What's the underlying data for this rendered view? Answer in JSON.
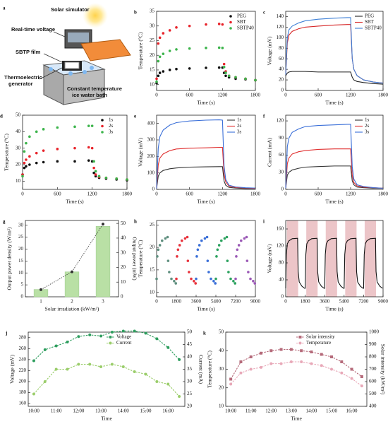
{
  "schematic": {
    "label": "a",
    "texts": [
      "Solar simulator",
      "Real-time voltage",
      "SBTP film",
      "Thermoelectric",
      "generator",
      "Constant temperature",
      "ice water bath"
    ]
  },
  "chart_data": [
    {
      "label": "b",
      "type": "scatter",
      "xlabel": "Time (s)",
      "ylabel": "Temperature (°C)",
      "legend": "upper right",
      "x": [
        0,
        30,
        60,
        120,
        240,
        360,
        600,
        900,
        1140,
        1200,
        1230,
        1260,
        1320,
        1440,
        1620,
        1800
      ],
      "xlim": [
        0,
        1800
      ],
      "xticks": [
        0,
        600,
        1200,
        1800
      ],
      "ylim": [
        8,
        35
      ],
      "yticks": [
        10,
        15,
        20,
        25,
        30,
        35
      ],
      "series": [
        {
          "name": "PEG",
          "color": "#111111",
          "values": [
            10.5,
            13,
            14,
            14.5,
            15,
            15.3,
            15.5,
            15.7,
            15.8,
            15.8,
            14,
            13,
            12.5,
            12,
            11.8,
            11.5
          ]
        },
        {
          "name": "SBT",
          "color": "#e8232a",
          "values": [
            12,
            24,
            26,
            27.5,
            28.5,
            29.5,
            30,
            30.5,
            30.7,
            30.5,
            17,
            14.5,
            13,
            12.5,
            12,
            11.5
          ]
        },
        {
          "name": "SBTP40",
          "color": "#3cb44b",
          "values": [
            11,
            18,
            19.5,
            20.5,
            21.5,
            22,
            22.3,
            22.5,
            22.6,
            22.5,
            16,
            14,
            13,
            12.5,
            12,
            11.5
          ]
        }
      ]
    },
    {
      "label": "c",
      "type": "line",
      "xlabel": "Time (s)",
      "ylabel": "Voltage (mV)",
      "legend": "upper right",
      "x": [
        0,
        30,
        60,
        120,
        240,
        360,
        600,
        900,
        1140,
        1200,
        1230,
        1260,
        1320,
        1440,
        1620,
        1800
      ],
      "xlim": [
        0,
        1800
      ],
      "xticks": [
        0,
        600,
        1200,
        1800
      ],
      "ylim": [
        0,
        150
      ],
      "yticks": [
        0,
        20,
        40,
        60,
        80,
        100,
        120,
        140
      ],
      "series": [
        {
          "name": "PEG",
          "color": "#222222",
          "values": [
            28,
            33,
            35,
            36,
            36,
            36,
            35,
            35,
            35,
            35,
            25,
            20,
            17,
            15,
            13,
            12
          ]
        },
        {
          "name": "SBT",
          "color": "#d62728",
          "values": [
            30,
            90,
            105,
            112,
            117,
            120,
            122,
            124,
            125,
            125,
            60,
            40,
            28,
            20,
            16,
            14
          ]
        },
        {
          "name": "SBTP40",
          "color": "#3d7fd6",
          "values": [
            30,
            100,
            115,
            122,
            128,
            132,
            135,
            137,
            138,
            138,
            60,
            40,
            28,
            20,
            16,
            14
          ]
        }
      ]
    },
    {
      "label": "d",
      "type": "scatter",
      "xlabel": "Time (s)",
      "ylabel": "Temperature (°C)",
      "legend": "upper right",
      "x": [
        0,
        30,
        60,
        120,
        240,
        360,
        600,
        900,
        1140,
        1200,
        1230,
        1260,
        1320,
        1440,
        1620,
        1800
      ],
      "xlim": [
        0,
        1800
      ],
      "xticks": [
        0,
        600,
        1200,
        1800
      ],
      "ylim": [
        5,
        50
      ],
      "yticks": [
        10,
        20,
        30,
        40,
        50
      ],
      "series": [
        {
          "name": "1s",
          "color": "#111111",
          "values": [
            14,
            18,
            19,
            20,
            21,
            21.5,
            22,
            22,
            22.5,
            22,
            15,
            13,
            12,
            11.5,
            11,
            10.5
          ]
        },
        {
          "name": "2s",
          "color": "#e8232a",
          "values": [
            14,
            21,
            23,
            25,
            27,
            28.5,
            29.5,
            30,
            30.5,
            30,
            18,
            14,
            12.5,
            12,
            11.5,
            11
          ]
        },
        {
          "name": "3s",
          "color": "#3cb44b",
          "values": [
            13,
            28,
            33,
            37,
            40,
            41.5,
            42.5,
            43,
            43.5,
            43.5,
            22,
            16,
            13,
            12,
            11.5,
            11
          ]
        }
      ]
    },
    {
      "label": "e",
      "type": "line",
      "xlabel": "Time (s)",
      "ylabel": "Voltage (mV)",
      "legend": "upper right",
      "x": [
        0,
        30,
        60,
        120,
        240,
        360,
        600,
        900,
        1140,
        1200,
        1230,
        1260,
        1320,
        1440,
        1620,
        1800
      ],
      "xlim": [
        0,
        1800
      ],
      "xticks": [
        0,
        600,
        1200,
        1800
      ],
      "ylim": [
        0,
        450
      ],
      "yticks": [
        0,
        100,
        200,
        300,
        400
      ],
      "series": [
        {
          "name": "1s",
          "color": "#333333",
          "values": [
            5,
            80,
            100,
            115,
            125,
            130,
            135,
            137,
            138,
            138,
            50,
            25,
            12,
            8,
            5,
            5
          ]
        },
        {
          "name": "2s",
          "color": "#e03030",
          "values": [
            5,
            150,
            190,
            215,
            235,
            245,
            250,
            252,
            255,
            255,
            90,
            45,
            20,
            12,
            8,
            6
          ]
        },
        {
          "name": "3s",
          "color": "#3a6fd8",
          "values": [
            5,
            250,
            320,
            360,
            390,
            405,
            415,
            420,
            422,
            420,
            140,
            60,
            25,
            15,
            10,
            8
          ]
        }
      ]
    },
    {
      "label": "f",
      "type": "line",
      "xlabel": "Time (s)",
      "ylabel": "Current (mA)",
      "legend": "upper right",
      "x": [
        0,
        30,
        60,
        120,
        240,
        360,
        600,
        900,
        1140,
        1200,
        1230,
        1260,
        1320,
        1440,
        1620,
        1800
      ],
      "xlim": [
        0,
        1800
      ],
      "xticks": [
        0,
        600,
        1200,
        1800
      ],
      "ylim": [
        0,
        130
      ],
      "yticks": [
        0,
        30,
        60,
        90,
        120
      ],
      "series": [
        {
          "name": "1s",
          "color": "#333333",
          "values": [
            2,
            25,
            30,
            34,
            37,
            39,
            40,
            41,
            41,
            41,
            15,
            8,
            4,
            3,
            2,
            2
          ]
        },
        {
          "name": "2s",
          "color": "#e03030",
          "values": [
            2,
            45,
            55,
            62,
            66,
            68,
            70,
            71,
            71,
            71,
            25,
            12,
            6,
            4,
            3,
            2
          ]
        },
        {
          "name": "3s",
          "color": "#3a6fd8",
          "values": [
            2,
            75,
            90,
            100,
            106,
            110,
            112,
            113,
            114,
            114,
            40,
            18,
            8,
            5,
            3,
            2
          ]
        }
      ]
    },
    {
      "label": "g",
      "type": "combo",
      "xlabel": "Solar irradiation (kW/m²)",
      "ylabel": "Output power density (W/m²)",
      "y2label": "Output power (mW)",
      "categories": [
        "1",
        "2",
        "3"
      ],
      "ylim": [
        0,
        32
      ],
      "yticks": [
        0,
        5,
        10,
        15,
        20,
        25,
        30
      ],
      "y2lim": [
        0,
        52
      ],
      "y2ticks": [
        0,
        10,
        20,
        30,
        40,
        50
      ],
      "series": [
        {
          "kind": "bar",
          "axis": "y2",
          "color": "#b9e0a5",
          "values": [
            5,
            17,
            48
          ]
        },
        {
          "kind": "line",
          "color": "#333333",
          "values": [
            3,
            10.5,
            30.5
          ]
        }
      ]
    },
    {
      "label": "h",
      "type": "scatter",
      "xlabel": "Time (s)",
      "ylabel": "Temperature (°C)",
      "xlim": [
        0,
        9000
      ],
      "xticks": [
        0,
        1800,
        3600,
        5400,
        7200,
        9000
      ],
      "ylim": [
        9,
        26
      ],
      "yticks": [
        10,
        15,
        20,
        25
      ],
      "series": [
        {
          "color": "#5f8f7f",
          "x": [
            0,
            60,
            150,
            300,
            500,
            800,
            1000,
            1050,
            1150,
            1350,
            1600,
            1750
          ],
          "values": [
            13,
            18,
            19.5,
            20.5,
            21.5,
            22,
            22.3,
            17,
            14.5,
            13,
            12.5,
            12
          ]
        },
        {
          "color": "#e8323c",
          "x": [
            1800,
            1860,
            1950,
            2100,
            2300,
            2600,
            2800,
            2850,
            2950,
            3150,
            3400,
            3550
          ],
          "values": [
            13,
            18,
            19.5,
            20.5,
            21.5,
            22,
            22.3,
            17,
            14.5,
            13,
            12.5,
            12
          ]
        },
        {
          "color": "#3a6fd8",
          "x": [
            3600,
            3660,
            3750,
            3900,
            4100,
            4400,
            4600,
            4650,
            4750,
            4950,
            5200,
            5350
          ],
          "values": [
            13,
            18,
            19.5,
            20.5,
            21.5,
            22,
            22.3,
            17,
            14.5,
            13,
            12.5,
            12
          ]
        },
        {
          "color": "#2ca25f",
          "x": [
            5400,
            5460,
            5550,
            5700,
            5900,
            6200,
            6400,
            6450,
            6550,
            6750,
            7000,
            7150
          ],
          "values": [
            13,
            18,
            19.5,
            20.5,
            21.5,
            22,
            22.3,
            17,
            14.5,
            13,
            12.5,
            12
          ]
        },
        {
          "color": "#9b59b6",
          "x": [
            7200,
            7260,
            7350,
            7500,
            7700,
            8000,
            8200,
            8250,
            8350,
            8550,
            8800,
            8950
          ],
          "values": [
            13,
            18,
            19.5,
            20.5,
            21.5,
            22,
            22.3,
            17,
            14.5,
            13,
            12.5,
            12
          ]
        }
      ]
    },
    {
      "label": "i",
      "type": "line",
      "xlabel": "Time (s)",
      "ylabel": "Voltage (mV)",
      "xlim": [
        0,
        9000
      ],
      "xticks": [
        0,
        1800,
        3600,
        5400,
        7200,
        9000
      ],
      "ylim": [
        0,
        180
      ],
      "yticks": [
        0,
        40,
        80,
        120,
        160
      ],
      "bands": [
        [
          100,
          1150
        ],
        [
          1900,
          2950
        ],
        [
          3700,
          4750
        ],
        [
          5500,
          6550
        ],
        [
          7300,
          8350
        ]
      ],
      "band_color": "#c0404a",
      "x": [
        0,
        60,
        150,
        300,
        600,
        1100,
        1150,
        1250,
        1500,
        1750,
        1800,
        1860,
        1950,
        2100,
        2400,
        2900,
        2950,
        3050,
        3300,
        3550,
        3600,
        3660,
        3750,
        3900,
        4200,
        4700,
        4750,
        4850,
        5100,
        5350,
        5400,
        5460,
        5550,
        5700,
        6000,
        6500,
        6550,
        6650,
        6900,
        7150,
        7200,
        7260,
        7350,
        7500,
        7800,
        8300,
        8350,
        8450,
        8700,
        8950
      ],
      "series": [
        {
          "color": "#111111",
          "values": [
            20,
            100,
            125,
            132,
            137,
            138,
            60,
            35,
            25,
            20,
            20,
            100,
            125,
            132,
            137,
            138,
            60,
            35,
            25,
            20,
            20,
            100,
            125,
            132,
            137,
            138,
            60,
            35,
            25,
            20,
            20,
            100,
            125,
            132,
            137,
            138,
            60,
            35,
            25,
            20,
            20,
            100,
            125,
            132,
            137,
            138,
            60,
            35,
            25,
            20
          ]
        }
      ]
    },
    {
      "label": "j",
      "type": "line",
      "dash": true,
      "xlabel": "Time",
      "ylabel": "Voltage (mV)",
      "y2label": "Current (mA)",
      "legend": "upper center",
      "categories": [
        "10:00",
        null,
        "11:00",
        null,
        "12:00",
        null,
        "13:00",
        null,
        "14:00",
        null,
        "15:00",
        null,
        "16:00",
        null
      ],
      "ylim": [
        155,
        290
      ],
      "yticks": [
        160,
        180,
        200,
        220,
        240,
        260,
        280
      ],
      "y2lim": [
        20,
        50
      ],
      "y2ticks": [
        20,
        25,
        30,
        35,
        40,
        45,
        50
      ],
      "series": [
        {
          "name": "Voltage",
          "color": "#2e9e5e",
          "marker": "circle",
          "values": [
            238,
            258,
            265,
            272,
            282,
            285,
            283,
            290,
            292,
            292,
            288,
            278,
            262,
            240
          ]
        },
        {
          "name": "Current",
          "color": "#9acd6a",
          "marker": "circle",
          "axis": "y2",
          "values": [
            25,
            30,
            35,
            35,
            37,
            37,
            36,
            37,
            36,
            34,
            33,
            30,
            29,
            24
          ]
        }
      ]
    },
    {
      "label": "k",
      "type": "line",
      "dash": true,
      "xlabel": "Time",
      "ylabel": "Temperature (°C)",
      "y2label": "Solar intensity (kW/m²)",
      "legend": "upper center",
      "categories": [
        "10:00",
        null,
        "11:00",
        null,
        "12:00",
        null,
        "13:00",
        null,
        "14:00",
        null,
        "15:00",
        null,
        "16:00",
        null
      ],
      "ylim": [
        10,
        50
      ],
      "yticks": [
        10,
        20,
        30,
        40,
        50
      ],
      "y2lim": [
        400,
        1000
      ],
      "y2ticks": [
        400,
        500,
        600,
        700,
        800,
        900,
        1000
      ],
      "series": [
        {
          "name": "Solar intensity",
          "color": "#b56a7a",
          "marker": "square",
          "axis": "y2",
          "values": [
            620,
            760,
            800,
            830,
            850,
            860,
            860,
            850,
            840,
            820,
            800,
            760,
            700,
            640
          ]
        },
        {
          "name": "Temperature",
          "color": "#e8a8b8",
          "marker": "circle",
          "values": [
            22,
            28,
            30,
            31,
            33,
            33,
            34,
            34,
            33,
            32,
            30,
            28,
            25,
            21
          ]
        }
      ]
    }
  ]
}
